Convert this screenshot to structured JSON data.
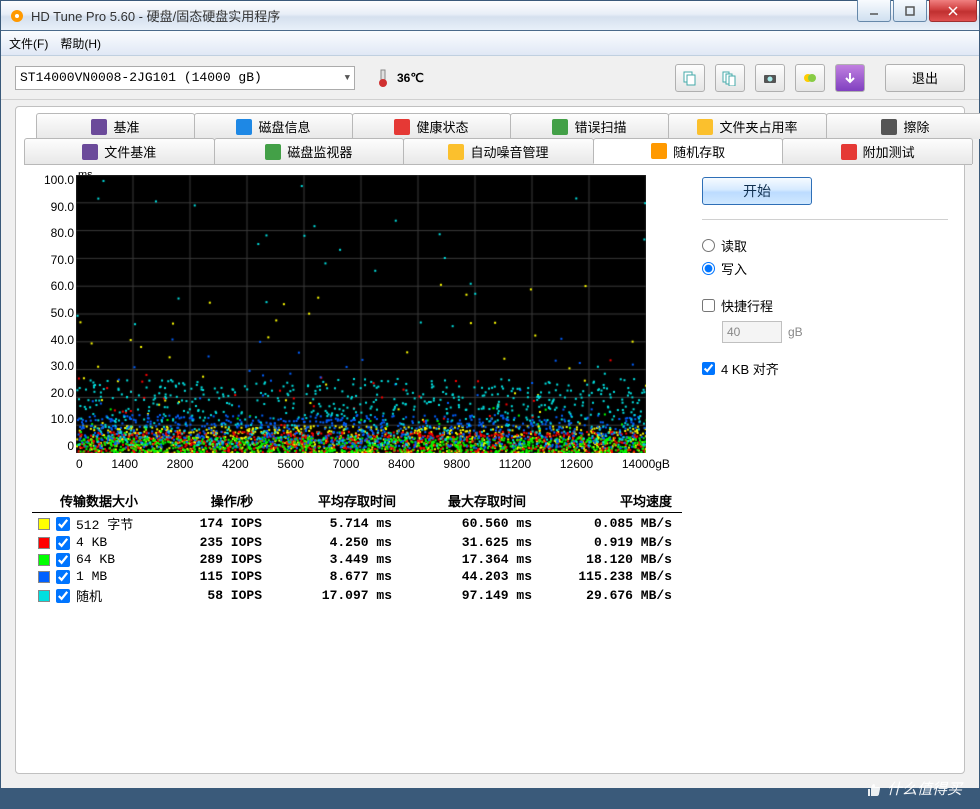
{
  "titlebar": {
    "title": "HD Tune Pro 5.60 - 硬盘/固态硬盘实用程序"
  },
  "menu": {
    "file": "文件(F)",
    "help": "帮助(H)"
  },
  "toolbar": {
    "drive": "ST14000VN0008-2JG101 (14000 gB)",
    "temp": "36℃",
    "exit": "退出"
  },
  "tabs_row1": [
    {
      "label": "基准",
      "icon_color": "#6b4a9a"
    },
    {
      "label": "磁盘信息",
      "icon_color": "#1e88e5"
    },
    {
      "label": "健康状态",
      "icon_color": "#e53935"
    },
    {
      "label": "错误扫描",
      "icon_color": "#43a047"
    },
    {
      "label": "文件夹占用率",
      "icon_color": "#fbc02d"
    },
    {
      "label": "擦除",
      "icon_color": "#555"
    }
  ],
  "tabs_row2": [
    {
      "label": "文件基准",
      "icon_color": "#6b4a9a"
    },
    {
      "label": "磁盘监视器",
      "icon_color": "#43a047"
    },
    {
      "label": "自动噪音管理",
      "icon_color": "#fbc02d"
    },
    {
      "label": "随机存取",
      "icon_color": "#ff9900",
      "active": true
    },
    {
      "label": "附加测试",
      "icon_color": "#e53935"
    }
  ],
  "chart": {
    "yunit": "ms",
    "ylim": [
      0,
      100
    ],
    "ytick_step": 10,
    "xlim": [
      0,
      14000
    ],
    "xtick_step": 1400,
    "xunit": "gB",
    "xticks": [
      "0",
      "1400",
      "2800",
      "4200",
      "5600",
      "7000",
      "8400",
      "9800",
      "11200",
      "12600",
      "14000gB"
    ],
    "yticks": [
      "100.0",
      "90.0",
      "80.0",
      "70.0",
      "60.0",
      "50.0",
      "40.0",
      "30.0",
      "20.0",
      "10.0",
      "0"
    ],
    "grid_color": "#3a3a3a",
    "bg_top": "#000000",
    "bg_bottom": "#2a2a2a",
    "series_colors": {
      "512B": "#ffff00",
      "4KB": "#ff0000",
      "64KB": "#00ff00",
      "1MB": "#0060ff",
      "random": "#00e0e0"
    },
    "density_hint": "dense scatter concentrated 0-20ms band across full x-range; sparse cyan up to ~60ms"
  },
  "results": {
    "headers": [
      "传输数据大小",
      "操作/秒",
      "平均存取时间",
      "最大存取时间",
      "平均速度"
    ],
    "rows": [
      {
        "swatch": "#ffff00",
        "checked": true,
        "label": "512 字节",
        "iops": "174 IOPS",
        "avg": "5.714 ms",
        "max": "60.560 ms",
        "rate": "0.085 MB/s"
      },
      {
        "swatch": "#ff0000",
        "checked": true,
        "label": "4 KB",
        "iops": "235 IOPS",
        "avg": "4.250 ms",
        "max": "31.625 ms",
        "rate": "0.919 MB/s"
      },
      {
        "swatch": "#00ff00",
        "checked": true,
        "label": "64 KB",
        "iops": "289 IOPS",
        "avg": "3.449 ms",
        "max": "17.364 ms",
        "rate": "18.120 MB/s"
      },
      {
        "swatch": "#0060ff",
        "checked": true,
        "label": "1 MB",
        "iops": "115 IOPS",
        "avg": "8.677 ms",
        "max": "44.203 ms",
        "rate": "115.238 MB/s"
      },
      {
        "swatch": "#00e0e0",
        "checked": true,
        "label": "随机",
        "iops": "58 IOPS",
        "avg": "17.097 ms",
        "max": "97.149 ms",
        "rate": "29.676 MB/s"
      }
    ]
  },
  "side": {
    "start": "开始",
    "read": "读取",
    "write": "写入",
    "write_selected": true,
    "short_stroke": "快捷行程",
    "short_stroke_checked": false,
    "short_stroke_value": "40",
    "short_stroke_unit": "gB",
    "align_4kb": "4 KB 对齐",
    "align_4kb_checked": true
  },
  "watermark": "什么值得买"
}
